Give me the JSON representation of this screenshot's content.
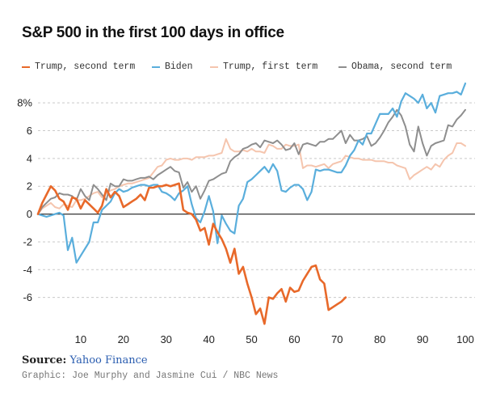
{
  "title": "S&P 500 in the first 100 days in office",
  "source_label": "Source:",
  "source_name": "Yahoo Finance",
  "credit": "Graphic: Joe Murphy and Jasmine Cui / NBC News",
  "chart_data": {
    "type": "line",
    "title": "S&P 500 in the first 100 days in office",
    "xlabel": "",
    "ylabel": "",
    "xlim": [
      0,
      100
    ],
    "ylim": [
      -8,
      9
    ],
    "x_ticks": [
      "10",
      "20",
      "30",
      "40",
      "50",
      "60",
      "70",
      "80",
      "90",
      "100"
    ],
    "y_ticks": [
      "8%",
      "6",
      "4",
      "2",
      "0",
      "-2",
      "-4",
      "-6"
    ],
    "y_tick_values": [
      8,
      6,
      4,
      2,
      0,
      -2,
      -4,
      -6
    ],
    "x_tick_values": [
      10,
      20,
      30,
      40,
      50,
      60,
      70,
      80,
      90,
      100
    ],
    "grid": "horizontal dashed",
    "legend_position": "top",
    "series": [
      {
        "name": "Trump, second term",
        "color": "#e8692a",
        "x": [
          0,
          1,
          2,
          3,
          4,
          5,
          6,
          7,
          8,
          9,
          10,
          11,
          12,
          13,
          14,
          15,
          16,
          17,
          18,
          19,
          20,
          21,
          22,
          23,
          24,
          25,
          26,
          27,
          28,
          29,
          30,
          31,
          32,
          33,
          34,
          35,
          36,
          37,
          38,
          39,
          40,
          41,
          42,
          43,
          44,
          45,
          46,
          47,
          48,
          49,
          50,
          51,
          52,
          53,
          54,
          55,
          56,
          57,
          58,
          59,
          60,
          61,
          62,
          63,
          64,
          65,
          66,
          67,
          68,
          69,
          70,
          71,
          72
        ],
        "values": [
          0,
          0.8,
          1.4,
          2.0,
          1.7,
          1.1,
          0.9,
          0.3,
          1.2,
          1.1,
          0.4,
          1.0,
          0.7,
          0.4,
          0.1,
          0.6,
          1.8,
          1.2,
          1.6,
          1.3,
          0.5,
          0.7,
          0.9,
          1.1,
          1.4,
          1.0,
          1.9,
          1.9,
          2.0,
          2.0,
          2.1,
          2.0,
          2.1,
          2.2,
          0.3,
          0.1,
          0.0,
          -0.4,
          -1.2,
          -1.0,
          -2.2,
          -0.7,
          -1.3,
          -1.8,
          -2.5,
          -3.5,
          -2.5,
          -4.3,
          -3.8,
          -5.0,
          -6.0,
          -7.2,
          -6.8,
          -7.9,
          -6.0,
          -6.1,
          -5.7,
          -5.4,
          -6.3,
          -5.3,
          -5.6,
          -5.5,
          -4.8,
          -4.3,
          -3.8,
          -3.7,
          -4.7,
          -5.0,
          -6.9,
          -6.7,
          -6.5,
          -6.3,
          -6.0
        ]
      },
      {
        "name": "Biden",
        "color": "#5aaedc",
        "x": [
          0,
          1,
          2,
          3,
          4,
          5,
          6,
          7,
          8,
          9,
          10,
          11,
          12,
          13,
          14,
          15,
          16,
          17,
          18,
          19,
          20,
          21,
          22,
          23,
          24,
          25,
          26,
          27,
          28,
          29,
          30,
          31,
          32,
          33,
          34,
          35,
          36,
          37,
          38,
          39,
          40,
          41,
          42,
          43,
          44,
          45,
          46,
          47,
          48,
          49,
          50,
          51,
          52,
          53,
          54,
          55,
          56,
          57,
          58,
          59,
          60,
          61,
          62,
          63,
          64,
          65,
          66,
          67,
          68,
          69,
          70,
          71,
          72,
          73,
          74,
          75,
          76,
          77,
          78,
          79,
          80,
          81,
          82,
          83,
          84,
          85,
          86,
          87,
          88,
          89,
          90,
          91,
          92,
          93,
          94,
          95,
          96,
          97,
          98,
          99,
          100
        ],
        "values": [
          0,
          -0.1,
          -0.2,
          -0.1,
          0.0,
          0.1,
          -0.1,
          -2.6,
          -1.7,
          -3.5,
          -3.0,
          -2.5,
          -2.0,
          -0.6,
          -0.6,
          0.3,
          0.6,
          0.9,
          1.5,
          1.8,
          1.6,
          1.7,
          1.9,
          2.0,
          2.1,
          2.1,
          2.0,
          2.1,
          2.1,
          1.6,
          1.5,
          1.3,
          1.0,
          1.5,
          1.7,
          2.0,
          0.7,
          -0.3,
          -0.6,
          0.2,
          1.3,
          0.2,
          -2.1,
          -0.1,
          -0.7,
          -1.2,
          -1.4,
          0.6,
          1.1,
          2.3,
          2.5,
          2.8,
          3.1,
          3.4,
          3.0,
          3.6,
          3.1,
          1.7,
          1.6,
          1.9,
          2.1,
          2.1,
          1.8,
          1.0,
          1.6,
          3.2,
          3.1,
          3.2,
          3.2,
          3.1,
          3.0,
          3.0,
          3.5,
          4.2,
          4.6,
          5.3,
          5.0,
          5.8,
          5.8,
          6.5,
          7.2,
          7.2,
          7.2,
          7.6,
          7.0,
          8.1,
          8.7,
          8.5,
          8.3,
          8.0,
          8.6,
          7.6,
          8.0,
          7.3,
          8.5,
          8.6,
          8.7,
          8.7,
          8.8,
          8.6,
          9.4
        ]
      },
      {
        "name": "Trump, first term",
        "color": "#f5c5ae",
        "x": [
          0,
          1,
          2,
          3,
          4,
          5,
          6,
          7,
          8,
          9,
          10,
          11,
          12,
          13,
          14,
          15,
          16,
          17,
          18,
          19,
          20,
          21,
          22,
          23,
          24,
          25,
          26,
          27,
          28,
          29,
          30,
          31,
          32,
          33,
          34,
          35,
          36,
          37,
          38,
          39,
          40,
          41,
          42,
          43,
          44,
          45,
          46,
          47,
          48,
          49,
          50,
          51,
          52,
          53,
          54,
          55,
          56,
          57,
          58,
          59,
          60,
          61,
          62,
          63,
          64,
          65,
          66,
          67,
          68,
          69,
          70,
          71,
          72,
          73,
          74,
          75,
          76,
          77,
          78,
          79,
          80,
          81,
          82,
          83,
          84,
          85,
          86,
          87,
          88,
          89,
          90,
          91,
          92,
          93,
          94,
          95,
          96,
          97,
          98,
          99,
          100
        ],
        "values": [
          0,
          0.4,
          0.6,
          0.8,
          0.5,
          0.4,
          0.7,
          0.6,
          0.5,
          1.0,
          1.0,
          1.1,
          1.3,
          1.5,
          1.6,
          1.2,
          1.5,
          1.7,
          1.8,
          2.0,
          2.1,
          2.2,
          2.2,
          2.3,
          2.4,
          2.5,
          2.6,
          3.0,
          3.4,
          3.5,
          3.9,
          4.0,
          3.9,
          3.9,
          4.0,
          4.0,
          3.9,
          4.1,
          4.1,
          4.1,
          4.2,
          4.2,
          4.3,
          4.4,
          5.4,
          4.7,
          4.5,
          4.5,
          4.6,
          4.5,
          4.7,
          4.5,
          4.5,
          4.4,
          5.0,
          4.9,
          4.7,
          4.7,
          5.0,
          4.9,
          4.9,
          5.0,
          3.3,
          3.5,
          3.5,
          3.4,
          3.5,
          3.6,
          3.3,
          3.6,
          3.7,
          3.8,
          4.2,
          4.1,
          4.0,
          4.0,
          3.9,
          3.9,
          3.9,
          3.8,
          3.8,
          3.8,
          3.7,
          3.7,
          3.5,
          3.4,
          3.3,
          2.5,
          2.8,
          3.0,
          3.2,
          3.4,
          3.2,
          3.6,
          3.4,
          3.9,
          4.2,
          4.4,
          5.1,
          5.1,
          4.9
        ]
      },
      {
        "name": "Obama, second term",
        "color": "#8e8e8e",
        "x": [
          0,
          1,
          2,
          3,
          4,
          5,
          6,
          7,
          8,
          9,
          10,
          11,
          12,
          13,
          14,
          15,
          16,
          17,
          18,
          19,
          20,
          21,
          22,
          23,
          24,
          25,
          26,
          27,
          28,
          29,
          30,
          31,
          32,
          33,
          34,
          35,
          36,
          37,
          38,
          39,
          40,
          41,
          42,
          43,
          44,
          45,
          46,
          47,
          48,
          49,
          50,
          51,
          52,
          53,
          54,
          55,
          56,
          57,
          58,
          59,
          60,
          61,
          62,
          63,
          64,
          65,
          66,
          67,
          68,
          69,
          70,
          71,
          72,
          73,
          74,
          75,
          76,
          77,
          78,
          79,
          80,
          81,
          82,
          83,
          84,
          85,
          86,
          87,
          88,
          89,
          90,
          91,
          92,
          93,
          94,
          95,
          96,
          97,
          98,
          99,
          100
        ],
        "values": [
          0,
          0.5,
          0.8,
          1.1,
          1.2,
          1.5,
          1.4,
          1.4,
          1.3,
          1.0,
          1.8,
          1.3,
          1.0,
          2.1,
          1.8,
          1.4,
          1.0,
          2.2,
          2.0,
          2.0,
          2.5,
          2.4,
          2.4,
          2.5,
          2.6,
          2.6,
          2.7,
          2.5,
          2.8,
          3.0,
          3.2,
          3.4,
          3.1,
          3.0,
          1.9,
          2.3,
          1.6,
          2.0,
          1.1,
          1.7,
          2.4,
          2.5,
          2.7,
          2.9,
          3.0,
          3.8,
          4.1,
          4.3,
          4.7,
          4.8,
          5.0,
          5.1,
          4.8,
          5.3,
          5.2,
          5.1,
          5.3,
          5.0,
          4.6,
          4.7,
          5.1,
          4.3,
          5.0,
          5.1,
          5.0,
          4.9,
          5.2,
          5.2,
          5.4,
          5.4,
          5.7,
          6.0,
          5.1,
          5.7,
          5.3,
          5.3,
          5.4,
          5.6,
          4.9,
          5.1,
          5.5,
          6.0,
          6.6,
          7.0,
          7.5,
          7.1,
          6.3,
          5.0,
          4.5,
          6.3,
          5.1,
          4.2,
          4.9,
          5.1,
          5.2,
          5.3,
          6.4,
          6.3,
          6.8,
          7.1,
          7.5
        ]
      }
    ]
  }
}
